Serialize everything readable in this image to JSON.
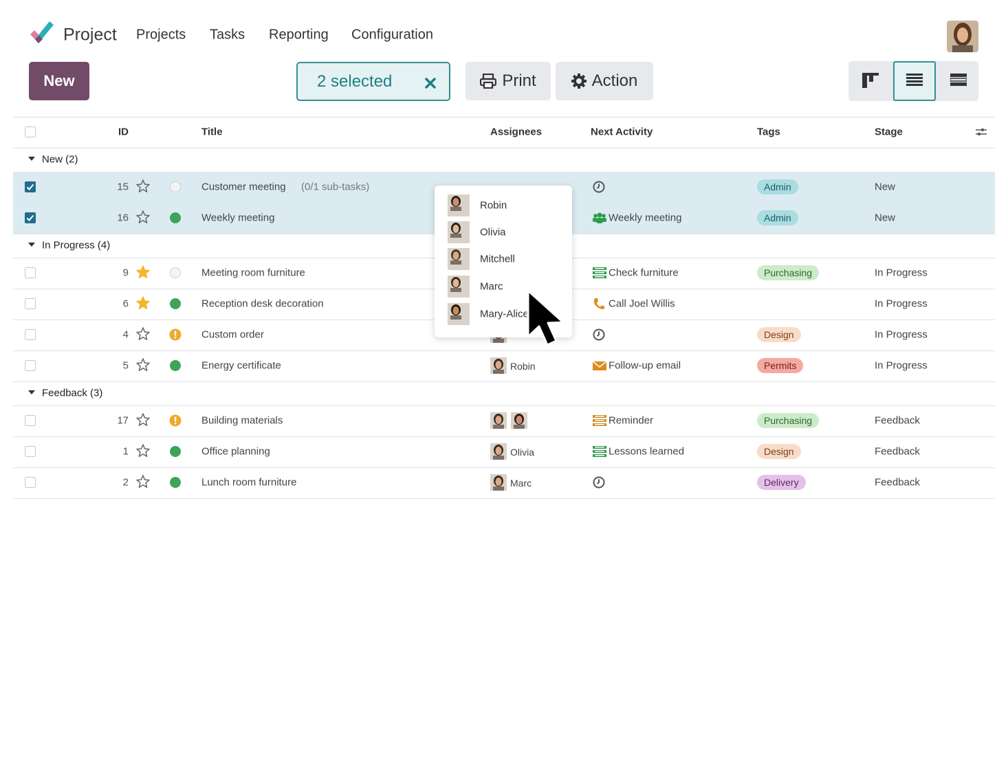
{
  "nav": {
    "app": "Project",
    "menu": [
      "Projects",
      "Tasks",
      "Reporting",
      "Configuration"
    ]
  },
  "toolbar": {
    "new": "New",
    "selected": "2 selected",
    "print": "Print",
    "action": "Action"
  },
  "table": {
    "columns": [
      "ID",
      "Title",
      "Assignees",
      "Next Activity",
      "Tags",
      "Stage"
    ],
    "groups": [
      {
        "label": "New (2)",
        "rows": [
          {
            "id": 15,
            "checked": true,
            "starred": false,
            "status": "none",
            "title": "Customer meeting",
            "subtasks": "(0/1 sub-tasks)",
            "activity": {
              "icon": "clock",
              "color": "#555555"
            },
            "tag": {
              "label": "Admin",
              "bg": "#a9dde2",
              "fg": "#1b5c63"
            },
            "stage": "New"
          },
          {
            "id": 16,
            "checked": true,
            "starred": false,
            "status": "done",
            "title": "Weekly meeting",
            "activity": {
              "icon": "group",
              "color": "#2e9a4a",
              "label": "Weekly meeting"
            },
            "tag": {
              "label": "Admin",
              "bg": "#a9dde2",
              "fg": "#1b5c63"
            },
            "stage": "New"
          }
        ]
      },
      {
        "label": "In Progress (4)",
        "rows": [
          {
            "id": 9,
            "checked": false,
            "starred": true,
            "status": "none",
            "title": "Meeting room furniture",
            "activity": {
              "icon": "list",
              "color": "#2e9a4a",
              "label": "Check furniture"
            },
            "tag": {
              "label": "Purchasing",
              "bg": "#cdebcb",
              "fg": "#2d6a2a"
            },
            "stage": "In Progress"
          },
          {
            "id": 6,
            "checked": false,
            "starred": true,
            "status": "done",
            "title": "Reception desk decoration",
            "activity": {
              "icon": "phone",
              "color": "#e08a1e",
              "label": "Call Joel Willis"
            },
            "stage": "In Progress"
          },
          {
            "id": 4,
            "checked": false,
            "starred": false,
            "status": "blocked",
            "title": "Custom order",
            "avatars": 1,
            "activity": {
              "icon": "clock",
              "color": "#555555"
            },
            "tag": {
              "label": "Design",
              "bg": "#f8dcc8",
              "fg": "#7a4220"
            },
            "stage": "In Progress"
          },
          {
            "id": 5,
            "checked": false,
            "starred": false,
            "status": "done",
            "title": "Energy certificate",
            "avatars": 1,
            "assignee": "Robin",
            "activity": {
              "icon": "mail",
              "color": "#e08a1e",
              "label": "Follow-up email"
            },
            "tag": {
              "label": "Permits",
              "bg": "#f4a9a1",
              "fg": "#7a1e18"
            },
            "stage": "In Progress"
          }
        ]
      },
      {
        "label": "Feedback (3)",
        "rows": [
          {
            "id": 17,
            "checked": false,
            "starred": false,
            "status": "blocked",
            "title": "Building materials",
            "avatars": 2,
            "activity": {
              "icon": "list",
              "color": "#d18a1e",
              "label": "Reminder"
            },
            "tag": {
              "label": "Purchasing",
              "bg": "#cdebcb",
              "fg": "#2d6a2a"
            },
            "stage": "Feedback"
          },
          {
            "id": 1,
            "checked": false,
            "starred": false,
            "status": "done",
            "title": "Office planning",
            "avatars": 1,
            "assignee": "Olivia",
            "activity": {
              "icon": "list",
              "color": "#2e9a4a",
              "label": "Lessons learned"
            },
            "tag": {
              "label": "Design",
              "bg": "#f8dcc8",
              "fg": "#7a4220"
            },
            "stage": "Feedback"
          },
          {
            "id": 2,
            "checked": false,
            "starred": false,
            "status": "done",
            "title": "Lunch room furniture",
            "avatars": 1,
            "assignee": "Marc",
            "activity": {
              "icon": "clock",
              "color": "#555555"
            },
            "tag": {
              "label": "Delivery",
              "bg": "#e4c1e8",
              "fg": "#5e2a66"
            },
            "stage": "Feedback"
          }
        ]
      }
    ]
  },
  "dropdown": [
    "Robin",
    "Olivia",
    "Mitchell",
    "Marc",
    "Mary-Alice"
  ]
}
